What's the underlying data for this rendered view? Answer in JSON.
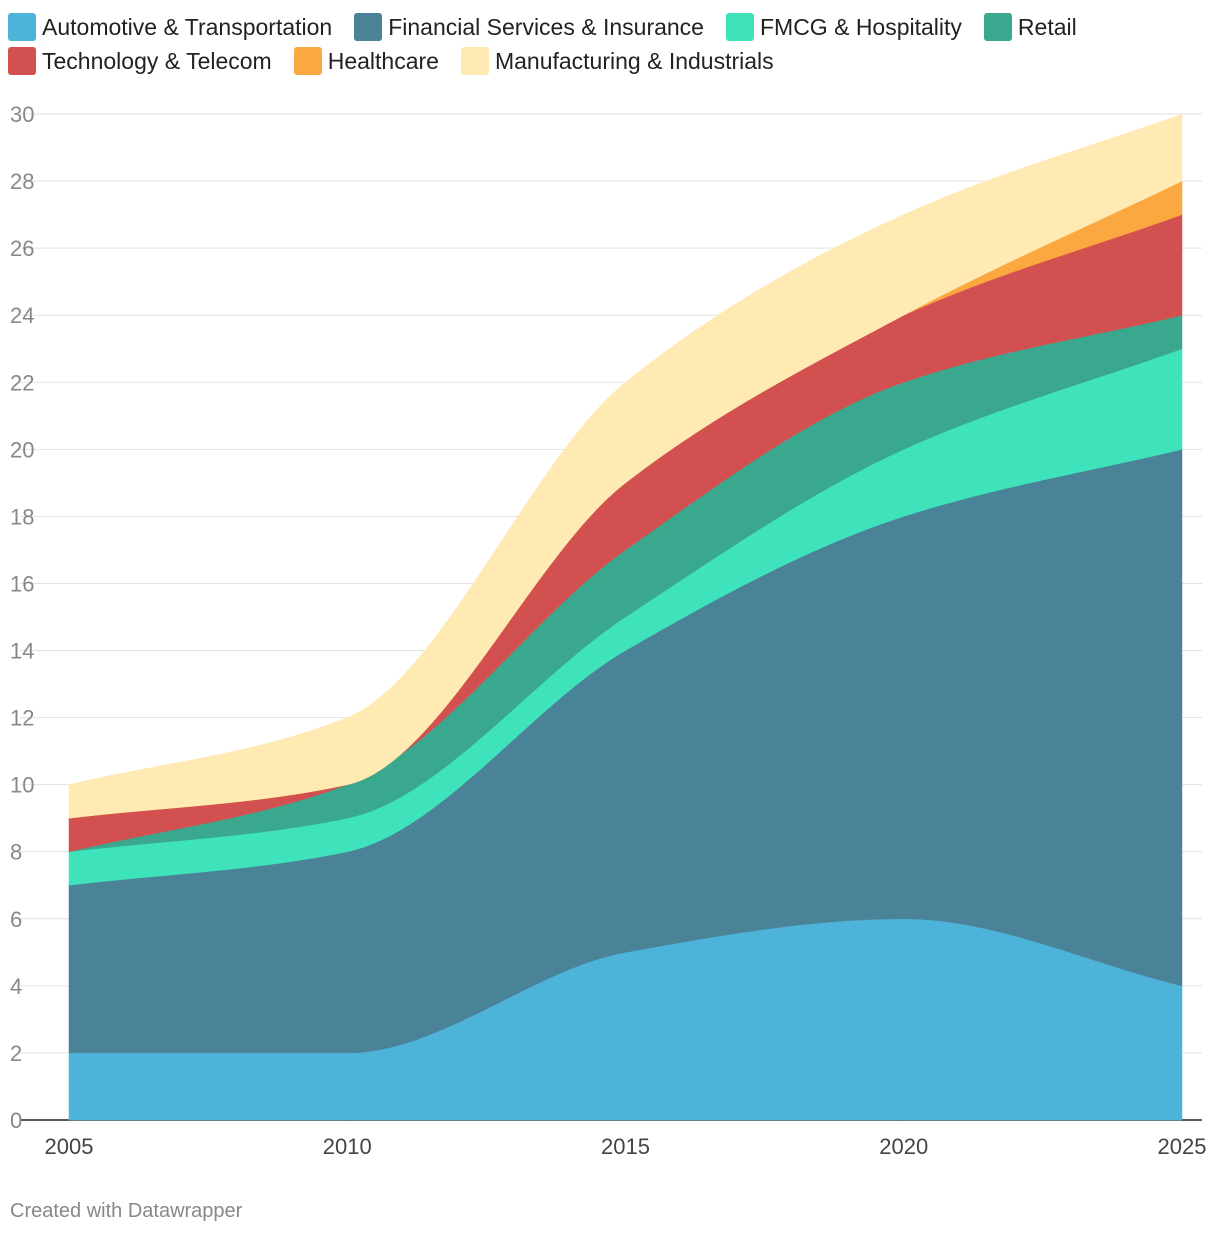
{
  "chart_data": {
    "type": "area",
    "stacked": true,
    "title": "",
    "xlabel": "",
    "ylabel": "",
    "x": [
      2005,
      2010,
      2015,
      2020,
      2025
    ],
    "x_ticks": [
      "2005",
      "2010",
      "2015",
      "2020",
      "2025"
    ],
    "ylim": [
      0,
      30
    ],
    "y_ticks": [
      "0",
      "2",
      "4",
      "6",
      "8",
      "10",
      "12",
      "14",
      "16",
      "18",
      "20",
      "22",
      "24",
      "26",
      "28",
      "30"
    ],
    "grid": true,
    "legend_position": "top",
    "series": [
      {
        "name": "Automotive & Transportation",
        "color": "#4db3d9",
        "values": [
          2,
          2,
          5,
          6,
          4
        ]
      },
      {
        "name": "Financial Services & Insurance",
        "color": "#4a8398",
        "values": [
          5,
          6,
          9,
          12,
          16
        ]
      },
      {
        "name": "FMCG & Hospitality",
        "color": "#3ee3bb",
        "values": [
          1,
          1,
          1,
          2,
          3
        ]
      },
      {
        "name": "Retail",
        "color": "#3aa88e",
        "values": [
          0,
          1,
          2,
          2,
          1
        ]
      },
      {
        "name": "Technology & Telecom",
        "color": "#d35050",
        "values": [
          1,
          0,
          2,
          2,
          3
        ]
      },
      {
        "name": "Healthcare",
        "color": "#fba840",
        "values": [
          0,
          0,
          0,
          0,
          1
        ]
      },
      {
        "name": "Manufacturing & Industrials",
        "color": "#ffeab4",
        "values": [
          1,
          2,
          3,
          3,
          2
        ]
      }
    ]
  },
  "footer": "Created with Datawrapper"
}
